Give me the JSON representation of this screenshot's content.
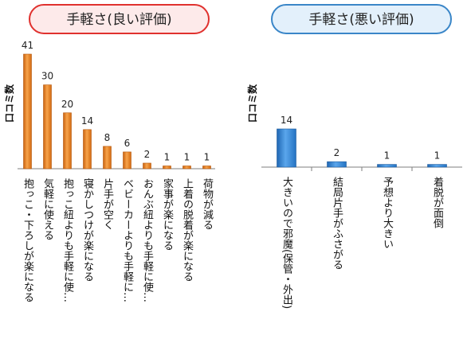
{
  "colors": {
    "good_border": "#e0312e",
    "good_fill": "#fdeaea",
    "good_bar": "#ec7c1c",
    "good_bar_dark": "#b4550a",
    "bad_border": "#3a86c8",
    "bad_fill": "#e3f0fb",
    "bad_bar": "#2f7fd0",
    "bad_bar_dark": "#1f5b9c",
    "axis": "#7f7f7f"
  },
  "chart_data": [
    {
      "type": "bar",
      "title": "手軽さ(良い評価)",
      "ylabel": "口コミ数",
      "xlabel": "",
      "categories": [
        "抱っこ・下ろしが楽になる",
        "気軽に使える",
        "抱っこ紐よりも手軽に使…",
        "寝かしつけが楽になる",
        "片手が空く",
        "ベビーカーよりも手軽に…",
        "おんぶ紐よりも手軽に使…",
        "家事が楽になる",
        "上着の脱着が楽になる",
        "荷物が減る"
      ],
      "values": [
        41,
        30,
        20,
        14,
        8,
        6,
        2,
        1,
        1,
        1
      ],
      "ylim": [
        0,
        41
      ],
      "grid": false,
      "legend": "none"
    },
    {
      "type": "bar",
      "title": "手軽さ(悪い評価)",
      "ylabel": "口コミ数",
      "xlabel": "",
      "categories": [
        "大きいので邪魔(保管・外出)",
        "結局片手がふさがる",
        "予想より大きい",
        "着脱が面倒"
      ],
      "values": [
        14,
        2,
        1,
        1
      ],
      "ylim": [
        0,
        14
      ],
      "grid": false,
      "legend": "none"
    }
  ]
}
